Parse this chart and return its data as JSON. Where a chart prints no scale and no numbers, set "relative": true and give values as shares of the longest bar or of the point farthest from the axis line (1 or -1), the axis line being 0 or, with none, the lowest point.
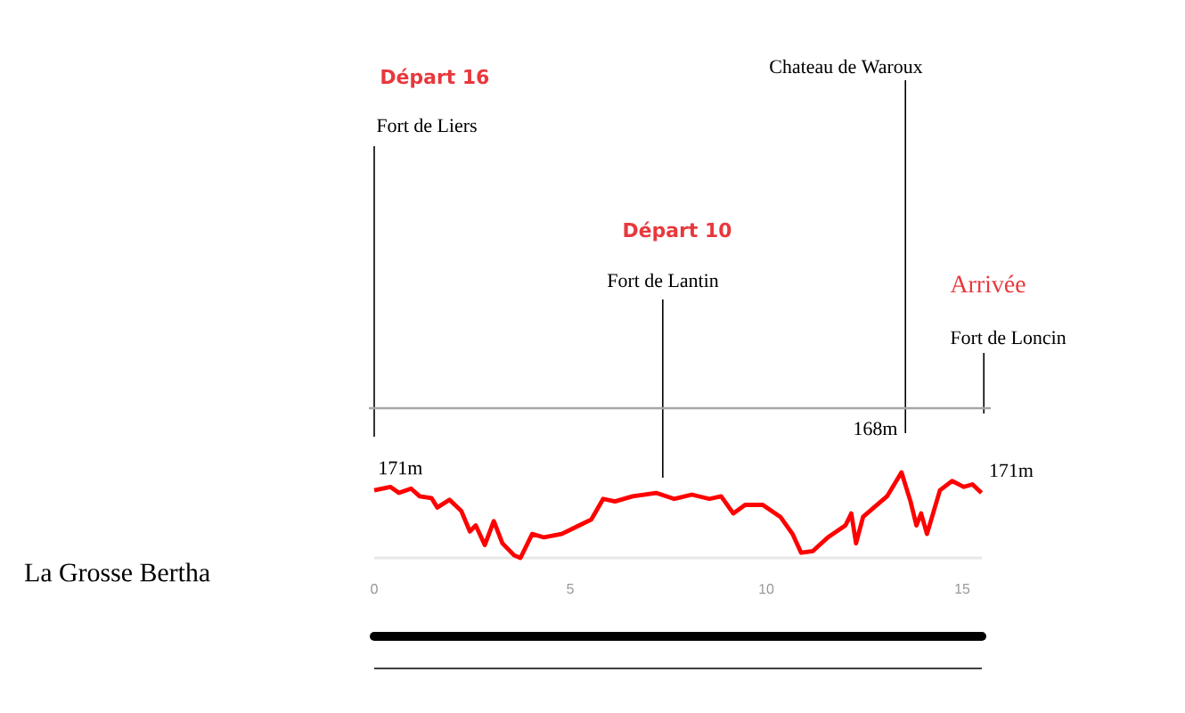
{
  "chart_data": {
    "type": "line",
    "relative": true,
    "xlim": [
      0,
      15.5
    ],
    "xticks": [
      0,
      5,
      10,
      15
    ],
    "series": [
      {
        "color": "#ff0000",
        "x": [
          0,
          0.41,
          0.63,
          0.94,
          1.16,
          1.46,
          1.61,
          1.92,
          2.22,
          2.44,
          2.59,
          2.82,
          3.05,
          3.27,
          3.57,
          3.73,
          4.03,
          4.33,
          4.78,
          5.23,
          5.54,
          5.84,
          6.14,
          6.59,
          7.19,
          7.65,
          8.1,
          8.55,
          8.85,
          9.16,
          9.46,
          9.91,
          10.36,
          10.67,
          10.89,
          11.19,
          11.57,
          12.02,
          12.17,
          12.29,
          12.47,
          13.08,
          13.45,
          13.68,
          13.83,
          13.95,
          14.1,
          14.43,
          14.74,
          15.04,
          15.26,
          15.49
        ],
        "values": [
          0.79,
          0.83,
          0.76,
          0.81,
          0.72,
          0.7,
          0.59,
          0.68,
          0.55,
          0.31,
          0.38,
          0.15,
          0.43,
          0.17,
          0.03,
          0,
          0.28,
          0.24,
          0.28,
          0.38,
          0.45,
          0.69,
          0.66,
          0.72,
          0.76,
          0.69,
          0.74,
          0.69,
          0.72,
          0.52,
          0.62,
          0.62,
          0.48,
          0.28,
          0.06,
          0.08,
          0.24,
          0.38,
          0.52,
          0.17,
          0.48,
          0.72,
          1,
          0.66,
          0.38,
          0.52,
          0.28,
          0.79,
          0.9,
          0.83,
          0.86,
          0.76
        ]
      }
    ],
    "ref_lines": [
      {
        "axis": "x",
        "value": 0,
        "label": "Fort de Liers",
        "color": "#000000"
      },
      {
        "axis": "x",
        "value": 7.36,
        "label": "Fort de Lantin",
        "color": "#000000"
      },
      {
        "axis": "x",
        "value": 13.55,
        "label": "Chateau de Waroux",
        "color": "#000000"
      },
      {
        "axis": "x",
        "value": 15.55,
        "label": "Fort de Loncin",
        "color": "#000000"
      }
    ],
    "annotations": [
      "Départ 16",
      "Départ 10",
      "Arrivée",
      "La Grosse Bertha",
      {
        "text": "171m",
        "x": 0,
        "y": 0.79
      },
      {
        "text": "168m",
        "x": 13.45,
        "y": 1
      },
      {
        "text": "171m",
        "x": 15.49,
        "y": 0.76
      }
    ]
  }
}
